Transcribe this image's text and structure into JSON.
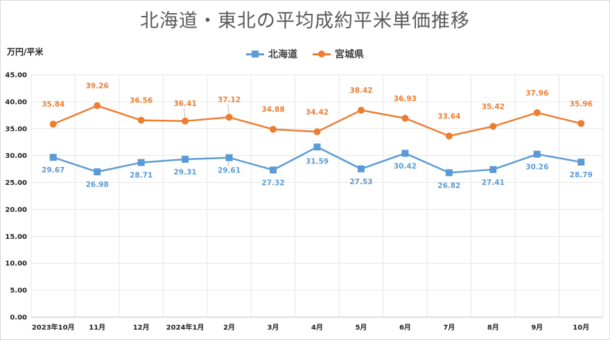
{
  "chart_data": {
    "type": "line",
    "title": "北海道・東北の平均成約平米単価推移",
    "ylabel": "万円/平米",
    "xlabel": "",
    "ylim": [
      0,
      45
    ],
    "ytick_step": 5,
    "ytick_labels": [
      "0.00",
      "5.00",
      "10.00",
      "15.00",
      "20.00",
      "25.00",
      "30.00",
      "35.00",
      "40.00",
      "45.00"
    ],
    "categories": [
      "2023年10月",
      "11月",
      "12月",
      "2024年1月",
      "2月",
      "3月",
      "4月",
      "5月",
      "6月",
      "7月",
      "8月",
      "9月",
      "10月"
    ],
    "series": [
      {
        "name": "北海道",
        "color": "#5b9bd5",
        "marker": "square",
        "values": [
          29.67,
          26.98,
          28.71,
          29.31,
          29.61,
          27.32,
          31.59,
          27.53,
          30.42,
          26.82,
          27.41,
          30.26,
          28.79
        ],
        "labels": [
          "29.67",
          "26.98",
          "28.71",
          "29.31",
          "29.61",
          "27.32",
          "31.59",
          "27.53",
          "30.42",
          "26.82",
          "27.41",
          "30.26",
          "28.79"
        ]
      },
      {
        "name": "宮城県",
        "color": "#ed7d31",
        "marker": "circle",
        "values": [
          35.84,
          39.26,
          36.56,
          36.41,
          37.12,
          34.88,
          34.42,
          38.42,
          36.93,
          33.64,
          35.42,
          37.96,
          35.96
        ],
        "labels": [
          "35.84",
          "39.26",
          "36.56",
          "36.41",
          "37.12",
          "34.88",
          "34.42",
          "38.42",
          "36.93",
          "33.64",
          "35.42",
          "37.96",
          "35.96"
        ]
      }
    ],
    "grid": true,
    "legend": "top-center"
  }
}
